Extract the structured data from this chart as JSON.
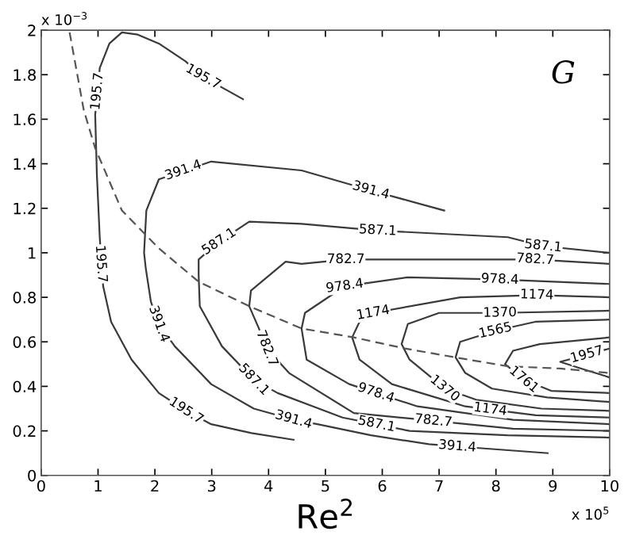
{
  "chart_data": {
    "type": "line",
    "xlabel": "Re$^{2}$",
    "xlim": [
      0,
      10
    ],
    "xticks": [
      0,
      1,
      2,
      3,
      4,
      5,
      6,
      7,
      8,
      9,
      10
    ],
    "ylim": [
      0,
      2
    ],
    "yticks": [
      0,
      0.2,
      0.4,
      0.6,
      0.8,
      1,
      1.2,
      1.4,
      1.6,
      1.8,
      2
    ],
    "grid": false,
    "marker": "none",
    "series": [
      {
        "color": "#3a3a3a",
        "line_style": "solid",
        "x": [
          3.55,
          3.2,
          2.85,
          2.54,
          2.07,
          1.7,
          1.42,
          1.2,
          1.03,
          0.95,
          0.98,
          1.03,
          1.09,
          1.23,
          1.59,
          2.07,
          2.55,
          2.99,
          3.7,
          4.44
        ],
        "values": [
          1.69,
          1.74,
          1.79,
          1.86,
          1.94,
          1.98,
          1.99,
          1.94,
          1.83,
          1.62,
          1.35,
          1.07,
          0.85,
          0.69,
          0.52,
          0.37,
          0.29,
          0.23,
          0.19,
          0.16
        ]
      },
      {
        "color": "#3a3a3a",
        "line_style": "solid",
        "x": [
          7.09,
          5.8,
          4.58,
          2.99,
          2.07,
          1.85,
          1.81,
          1.84,
          1.93,
          2.07,
          2.35,
          2.99,
          3.74,
          4.44,
          4.86,
          5.8,
          6.82,
          7.32,
          8.91
        ],
        "values": [
          1.19,
          1.28,
          1.37,
          1.41,
          1.33,
          1.19,
          1.0,
          0.93,
          0.78,
          0.68,
          0.58,
          0.41,
          0.3,
          0.25,
          0.23,
          0.18,
          0.14,
          0.13,
          0.1
        ]
      },
      {
        "color": "#3a3a3a",
        "line_style": "solid",
        "x": [
          10,
          8.83,
          8.21,
          5.92,
          4.58,
          3.66,
          3.13,
          2.77,
          2.77,
          2.79,
          3.18,
          3.74,
          4.16,
          5.3,
          6.48,
          8.2,
          10
        ],
        "values": [
          1.0,
          1.03,
          1.07,
          1.1,
          1.13,
          1.14,
          1.05,
          0.97,
          0.9,
          0.76,
          0.58,
          0.43,
          0.37,
          0.26,
          0.2,
          0.18,
          0.17
        ]
      },
      {
        "color": "#3a3a3a",
        "line_style": "solid",
        "x": [
          10,
          8.69,
          5.36,
          4.58,
          4.3,
          3.69,
          3.66,
          3.83,
          3.97,
          4.36,
          5.5,
          8.3,
          10
        ],
        "values": [
          0.95,
          0.97,
          0.97,
          0.95,
          0.96,
          0.83,
          0.76,
          0.66,
          0.57,
          0.46,
          0.28,
          0.21,
          0.2
        ]
      },
      {
        "color": "#3a3a3a",
        "line_style": "solid",
        "x": [
          10,
          8.07,
          6.45,
          5.34,
          4.64,
          4.58,
          4.67,
          5.42,
          5.89,
          6.62,
          8.3,
          10
        ],
        "values": [
          0.86,
          0.88,
          0.89,
          0.85,
          0.73,
          0.66,
          0.52,
          0.41,
          0.37,
          0.31,
          0.25,
          0.23
        ]
      },
      {
        "color": "#3a3a3a",
        "line_style": "solid",
        "x": [
          10,
          8.72,
          7.37,
          5.84,
          5.6,
          5.47,
          5.6,
          6.17,
          7.46,
          8.7,
          10
        ],
        "values": [
          0.8,
          0.81,
          0.8,
          0.73,
          0.69,
          0.62,
          0.52,
          0.41,
          0.31,
          0.27,
          0.26
        ]
      },
      {
        "color": "#3a3a3a",
        "line_style": "solid",
        "x": [
          10,
          8.07,
          7.0,
          6.45,
          6.34,
          6.48,
          7.1,
          7.65,
          8.8,
          10
        ],
        "values": [
          0.74,
          0.73,
          0.73,
          0.68,
          0.59,
          0.52,
          0.39,
          0.34,
          0.3,
          0.29
        ]
      },
      {
        "color": "#3a3a3a",
        "line_style": "solid",
        "x": [
          10,
          8.69,
          7.99,
          7.37,
          7.29,
          7.46,
          7.93,
          8.9,
          10
        ],
        "values": [
          0.7,
          0.69,
          0.65,
          0.6,
          0.53,
          0.46,
          0.39,
          0.35,
          0.33
        ]
      },
      {
        "color": "#3a3a3a",
        "line_style": "solid",
        "x": [
          10,
          8.77,
          8.3,
          8.16,
          8.49,
          8.97,
          10
        ],
        "values": [
          0.62,
          0.59,
          0.56,
          0.5,
          0.43,
          0.38,
          0.37
        ]
      },
      {
        "color": "#3a3a3a",
        "line_style": "solid",
        "x": [
          10,
          9.13,
          9.5,
          10
        ],
        "values": [
          0.57,
          0.51,
          0.48,
          0.44
        ]
      },
      {
        "color": "#555555",
        "line_style": "dashed",
        "x": [
          0.5,
          0.75,
          0.95,
          1.42,
          2.07,
          2.77,
          3.66,
          4.58,
          5.5,
          6.4,
          7.29,
          8.21,
          9.13,
          10
        ],
        "values": [
          1.99,
          1.64,
          1.47,
          1.19,
          1.02,
          0.87,
          0.76,
          0.66,
          0.62,
          0.57,
          0.53,
          0.49,
          0.48,
          0.46
        ]
      }
    ],
    "annotations": [
      "x 10$^{−3}$",
      "x 10$^{5}$",
      "G",
      {
        "text": "195.7",
        "x": 2.85,
        "y": 1.79
      },
      {
        "text": "195.7",
        "x": 0.99,
        "y": 1.725
      },
      {
        "text": "195.7",
        "x": 1.05,
        "y": 0.95
      },
      {
        "text": "195.7",
        "x": 2.55,
        "y": 0.29
      },
      {
        "text": "391.4",
        "x": 5.8,
        "y": 1.28
      },
      {
        "text": "391.4",
        "x": 2.5,
        "y": 1.37
      },
      {
        "text": "391.4",
        "x": 2.07,
        "y": 0.68
      },
      {
        "text": "391.4",
        "x": 4.44,
        "y": 0.25
      },
      {
        "text": "391.4",
        "x": 7.32,
        "y": 0.13
      },
      {
        "text": "587.1",
        "x": 8.83,
        "y": 1.03
      },
      {
        "text": "587.1",
        "x": 5.92,
        "y": 1.1
      },
      {
        "text": "587.1",
        "x": 3.13,
        "y": 1.05
      },
      {
        "text": "587.1",
        "x": 3.74,
        "y": 0.43
      },
      {
        "text": "587.1",
        "x": 5.9,
        "y": 0.23
      },
      {
        "text": "782.7",
        "x": 8.69,
        "y": 0.97
      },
      {
        "text": "782.7",
        "x": 5.36,
        "y": 0.97
      },
      {
        "text": "782.7",
        "x": 3.97,
        "y": 0.57
      },
      {
        "text": "782.7",
        "x": 6.9,
        "y": 0.245
      },
      {
        "text": "978.4",
        "x": 8.07,
        "y": 0.88
      },
      {
        "text": "978.4",
        "x": 5.34,
        "y": 0.85
      },
      {
        "text": "978.4",
        "x": 5.89,
        "y": 0.37
      },
      {
        "text": "1174",
        "x": 8.72,
        "y": 0.81
      },
      {
        "text": "1174",
        "x": 5.84,
        "y": 0.73
      },
      {
        "text": "1174",
        "x": 7.9,
        "y": 0.296
      },
      {
        "text": "1370",
        "x": 8.07,
        "y": 0.73
      },
      {
        "text": "1370",
        "x": 7.1,
        "y": 0.39
      },
      {
        "text": "1565",
        "x": 7.99,
        "y": 0.65
      },
      {
        "text": "1761",
        "x": 8.49,
        "y": 0.43
      },
      {
        "text": "1957",
        "x": 9.6,
        "y": 0.542
      }
    ]
  }
}
